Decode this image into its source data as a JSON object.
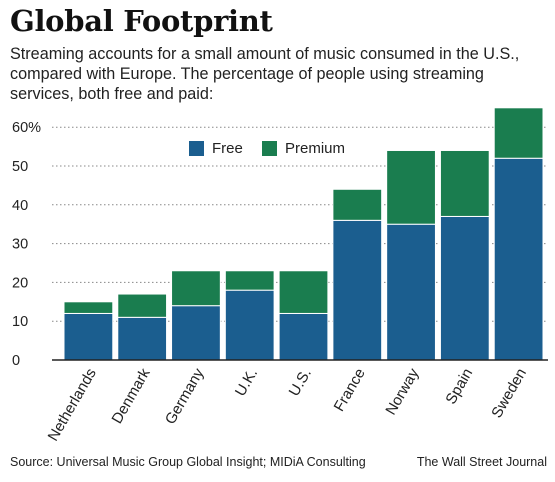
{
  "title": "Global Footprint",
  "subtitle": "Streaming accounts for a small amount of music consumed in the U.S., compared with Europe. The percentage of people using streaming services, both free and paid:",
  "source": "Source: Universal Music Group Global Insight; MIDiA Consulting",
  "credit": "The Wall Street Journal",
  "colors": {
    "free": "#1b5e8f",
    "premium": "#1a7d4f",
    "grid": "#888888",
    "axis": "#222222"
  },
  "chart_data": {
    "type": "bar",
    "stacked": true,
    "categories": [
      "Netherlands",
      "Denmark",
      "Germany",
      "U.K.",
      "U.S.",
      "France",
      "Norway",
      "Spain",
      "Sweden"
    ],
    "series": [
      {
        "name": "Free",
        "values": [
          12,
          11,
          14,
          18,
          12,
          36,
          35,
          37,
          52
        ]
      },
      {
        "name": "Premium",
        "values": [
          3,
          6,
          9,
          5,
          11,
          8,
          19,
          17,
          13
        ]
      }
    ],
    "yticks": [
      "0",
      "10",
      "20",
      "30",
      "40",
      "50",
      "60%"
    ],
    "ylim": [
      0,
      65
    ],
    "legend_position": "top-center"
  }
}
